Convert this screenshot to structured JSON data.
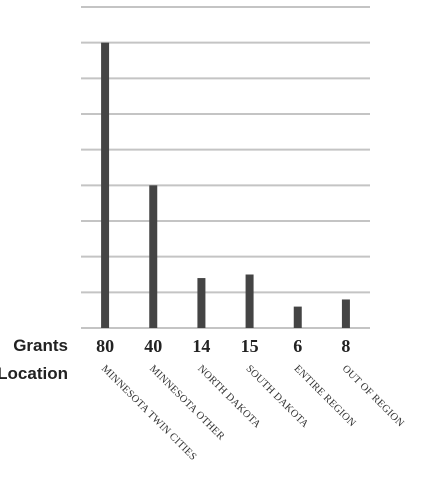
{
  "chart_data": {
    "type": "bar",
    "title": "",
    "xlabel": "",
    "ylabel": "",
    "row_labels": {
      "values": "Grants",
      "categories": "Location"
    },
    "categories": [
      "MINNESOTA TWIN CITIES",
      "MINNESOTA OTHER",
      "NORTH DAKOTA",
      "SOUTH DAKOTA",
      "ENTIRE REGION",
      "OUT OF REGION"
    ],
    "values": [
      80,
      40,
      14,
      15,
      6,
      8
    ],
    "value_labels": [
      "80",
      "40",
      "14",
      "15",
      "6",
      "8"
    ],
    "ylim": [
      0,
      90
    ],
    "grid": true,
    "legend": "none",
    "colors": {
      "bar": "#444444",
      "grid": "#c4c4c4"
    }
  }
}
